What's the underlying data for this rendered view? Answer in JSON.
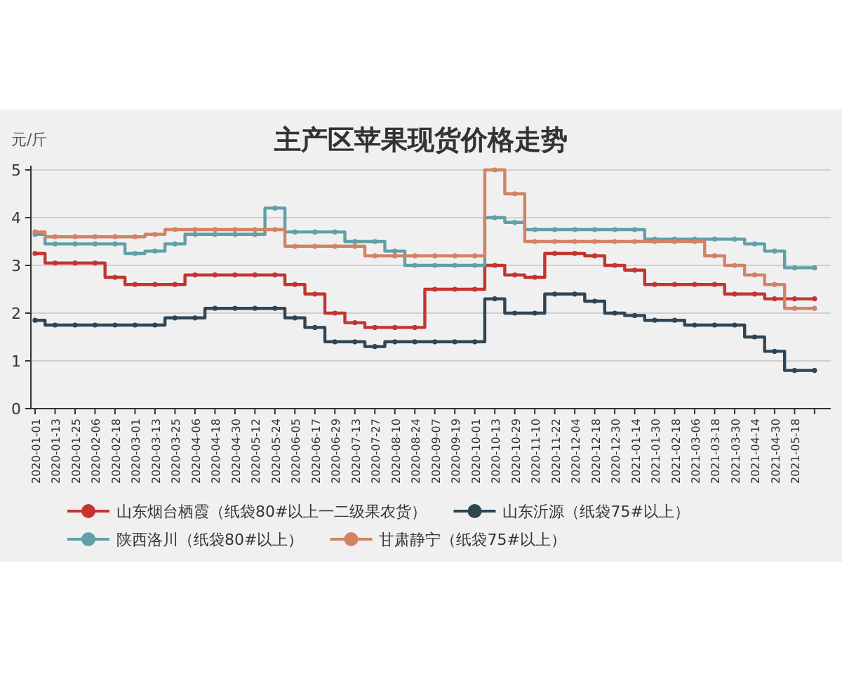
{
  "chart_data": {
    "type": "step",
    "title": "主产区苹果现货价格走势",
    "ylabel": "元/斤",
    "categories": [
      "2020-01-01",
      "2020-01-13",
      "2020-01-25",
      "2020-02-06",
      "2020-02-18",
      "2020-03-01",
      "2020-03-13",
      "2020-03-25",
      "2020-04-06",
      "2020-04-18",
      "2020-04-30",
      "2020-05-12",
      "2020-05-24",
      "2020-06-05",
      "2020-06-17",
      "2020-06-29",
      "2020-07-13",
      "2020-07-27",
      "2020-08-10",
      "2020-08-24",
      "2020-09-07",
      "2020-09-19",
      "2020-10-01",
      "2020-10-13",
      "2020-10-29",
      "2020-11-10",
      "2020-11-22",
      "2020-12-04",
      "2020-12-18",
      "2020-12-30",
      "2021-01-14",
      "2021-01-30",
      "2021-02-18",
      "2021-03-06",
      "2021-03-18",
      "2021-03-30",
      "2021-04-14",
      "2021-04-30",
      "2021-05-18",
      null
    ],
    "series": [
      {
        "name": "山东烟台栖霞（纸袋80#以上一二级果农货）",
        "color": "#c23531",
        "values": [
          3.25,
          3.05,
          3.05,
          3.05,
          2.75,
          2.6,
          2.6,
          2.6,
          2.8,
          2.8,
          2.8,
          2.8,
          2.8,
          2.6,
          2.4,
          2.0,
          1.8,
          1.7,
          1.7,
          1.7,
          2.5,
          2.5,
          2.5,
          3.0,
          2.8,
          2.75,
          3.25,
          3.25,
          3.2,
          3.0,
          2.9,
          2.6,
          2.6,
          2.6,
          2.6,
          2.4,
          2.4,
          2.3,
          2.3,
          2.3
        ]
      },
      {
        "name": "山东沂源（纸袋75#以上）",
        "color": "#2f4554",
        "values": [
          1.85,
          1.75,
          1.75,
          1.75,
          1.75,
          1.75,
          1.75,
          1.9,
          1.9,
          2.1,
          2.1,
          2.1,
          2.1,
          1.9,
          1.7,
          1.4,
          1.4,
          1.3,
          1.4,
          1.4,
          1.4,
          1.4,
          1.4,
          2.3,
          2.0,
          2.0,
          2.4,
          2.4,
          2.25,
          2.0,
          1.95,
          1.85,
          1.85,
          1.75,
          1.75,
          1.75,
          1.5,
          1.2,
          0.8,
          0.8
        ]
      },
      {
        "name": "陕西洛川（纸袋80#以上）",
        "color": "#61a0a8",
        "values": [
          3.65,
          3.45,
          3.45,
          3.45,
          3.45,
          3.25,
          3.3,
          3.45,
          3.65,
          3.65,
          3.65,
          3.65,
          4.2,
          3.7,
          3.7,
          3.7,
          3.5,
          3.5,
          3.3,
          3.0,
          3.0,
          3.0,
          3.0,
          4.0,
          3.9,
          3.75,
          3.75,
          3.75,
          3.75,
          3.75,
          3.75,
          3.55,
          3.55,
          3.55,
          3.55,
          3.55,
          3.45,
          3.3,
          2.95,
          2.95
        ]
      },
      {
        "name": "甘肃静宁（纸袋75#以上）",
        "color": "#d48265",
        "values": [
          3.7,
          3.6,
          3.6,
          3.6,
          3.6,
          3.6,
          3.65,
          3.75,
          3.75,
          3.75,
          3.75,
          3.75,
          3.75,
          3.4,
          3.4,
          3.4,
          3.4,
          3.2,
          3.2,
          3.2,
          3.2,
          3.2,
          3.2,
          5.0,
          4.5,
          3.5,
          3.5,
          3.5,
          3.5,
          3.5,
          3.5,
          3.5,
          3.5,
          3.5,
          3.2,
          3.0,
          2.8,
          2.6,
          2.1,
          2.1
        ]
      }
    ],
    "ylim": [
      0,
      5
    ],
    "yticks": [
      0,
      1,
      2,
      3,
      4,
      5
    ],
    "grid": "y",
    "legend": "bottom",
    "marker": "circle"
  }
}
